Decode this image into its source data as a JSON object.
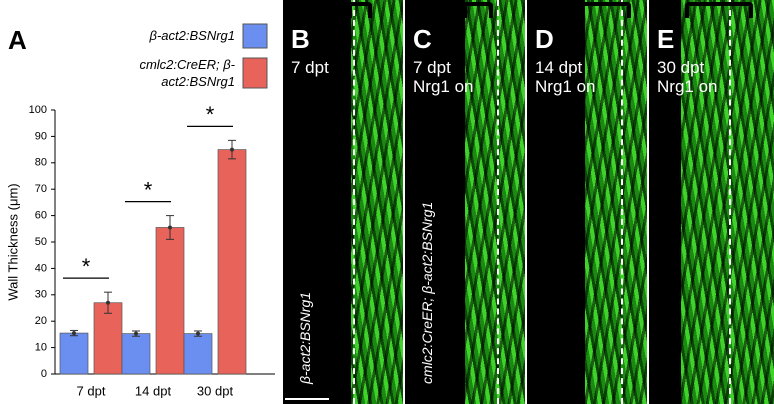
{
  "chart_data": {
    "type": "bar",
    "panel_label": "A",
    "y_label": "Wall Thickness (μm)",
    "categories": [
      "7 dpt",
      "14 dpt",
      "30 dpt"
    ],
    "series": [
      {
        "name": "β-act2:BSNrg1",
        "color": "#6b8ff0",
        "values": [
          15.5,
          15.3,
          15.3
        ],
        "errors": [
          1,
          1,
          1
        ]
      },
      {
        "name": "cmlc2:CreER; β-act2:BSNrg1",
        "color": "#e8635a",
        "values": [
          27,
          55.5,
          85
        ],
        "errors": [
          4,
          4.5,
          3.5
        ]
      }
    ],
    "significance": [
      "*",
      "*",
      "*"
    ],
    "ylim": [
      0,
      100
    ],
    "yticks": [
      0,
      10,
      20,
      30,
      40,
      50,
      60,
      70,
      80,
      90,
      100
    ]
  },
  "panels": [
    {
      "label": "B",
      "lines": [
        "7 dpt"
      ],
      "genotype": "β-act2:BSNrg1"
    },
    {
      "label": "C",
      "lines": [
        "7 dpt",
        "Nrg1 on"
      ],
      "genotype": "cmlc2:CreER; β-act2:BSNrg1"
    },
    {
      "label": "D",
      "lines": [
        "14 dpt",
        "Nrg1 on"
      ]
    },
    {
      "label": "E",
      "lines": [
        "30 dpt",
        "Nrg1 on"
      ]
    }
  ]
}
